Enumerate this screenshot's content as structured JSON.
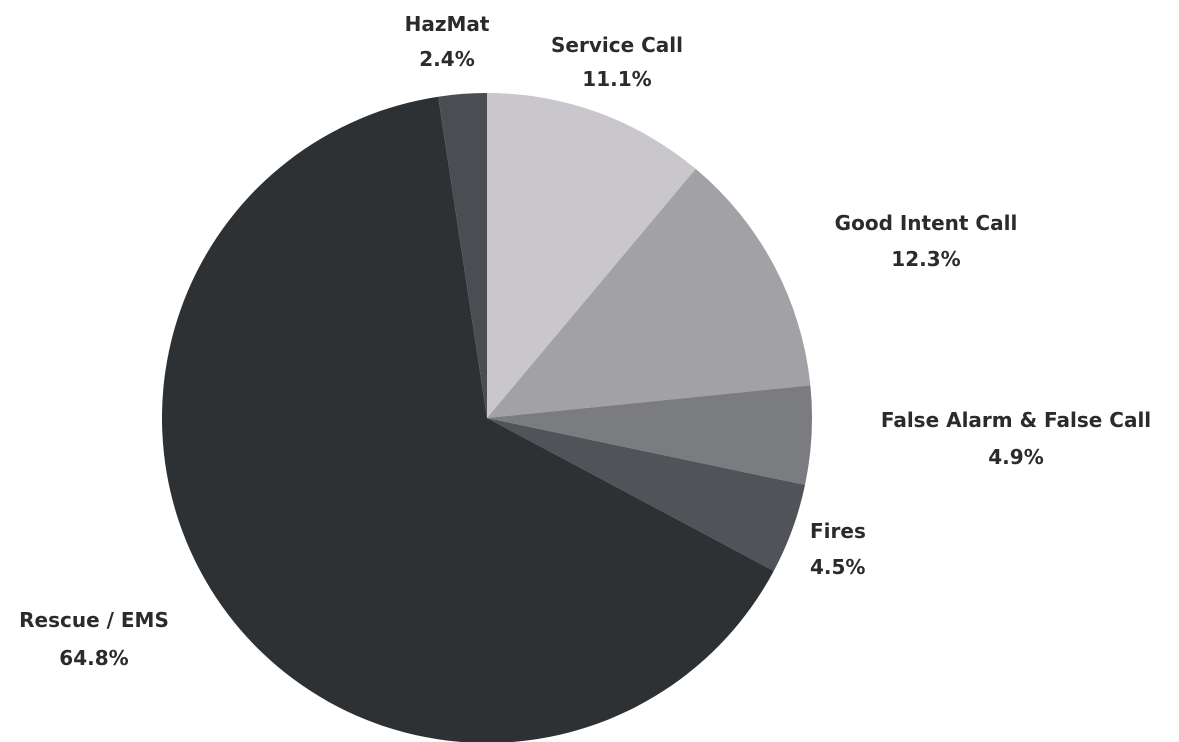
{
  "chart_data": {
    "type": "pie",
    "start_angle_deg": 0,
    "direction": "clockwise",
    "slices": [
      {
        "label": "Service Call",
        "value": 11.1,
        "value_label": "11.1%",
        "color": "#c9c7cc"
      },
      {
        "label": "Good Intent Call",
        "value": 12.3,
        "value_label": "12.3%",
        "color": "#a2a1a5"
      },
      {
        "label": "False Alarm & False Call",
        "value": 4.9,
        "value_label": "4.9%",
        "color": "#7b7c7f"
      },
      {
        "label": "Fires",
        "value": 4.5,
        "value_label": "4.5%",
        "color": "#505458"
      },
      {
        "label": "Rescue / EMS",
        "value": 64.8,
        "value_label": "64.8%",
        "color": "#2e3133"
      },
      {
        "label": "HazMat",
        "value": 2.4,
        "value_label": "2.4%",
        "color": "#4a4e52"
      }
    ]
  }
}
